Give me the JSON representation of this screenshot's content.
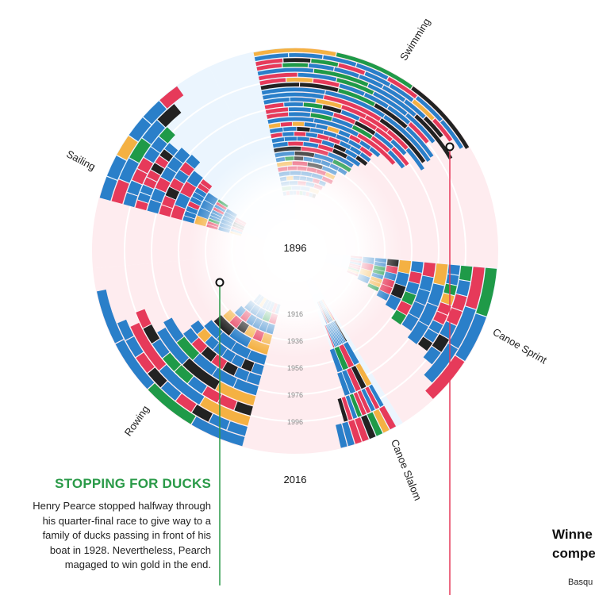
{
  "chart_data": {
    "type": "radial-bar",
    "center_year_start": "1896",
    "center_year_end": "2016",
    "year_ticks": [
      "1916",
      "1936",
      "1956",
      "1976",
      "1996"
    ],
    "sports": [
      {
        "name": "Swimming",
        "start_deg": -12,
        "span_deg": 93,
        "bars": 30
      },
      {
        "name": "Canoe Sprint",
        "start_deg": 95,
        "span_deg": 50,
        "bars": 12
      },
      {
        "name": "Canoe Slalom",
        "start_deg": 150,
        "span_deg": 20,
        "bars": 6
      },
      {
        "name": "Rowing",
        "start_deg": 195,
        "span_deg": 70,
        "bars": 14
      },
      {
        "name": "Sailing",
        "start_deg": 285,
        "span_deg": 42,
        "bars": 12
      }
    ],
    "medal_colors": {
      "gold": "#f4b143",
      "blue": "#2a7fc9",
      "red": "#e63a5a",
      "green": "#1f9a48",
      "black": "#222222"
    }
  },
  "annotation": {
    "title": "STOPPING FOR DUCKS",
    "body": "Henry Pearce stopped halfway through his quarter-final race to give way to a family of ducks passing in front of his boat in 1928. Nevertheless, Pearch magaged to win gold in the end.",
    "color": "#2a9a48"
  },
  "highlight_colors": {
    "swimming": "#e63a5a",
    "rowing": "#2a9a48"
  },
  "legend": {
    "title_line1": "Winne",
    "title_line2": "compe",
    "subtitle": "Basqu"
  }
}
